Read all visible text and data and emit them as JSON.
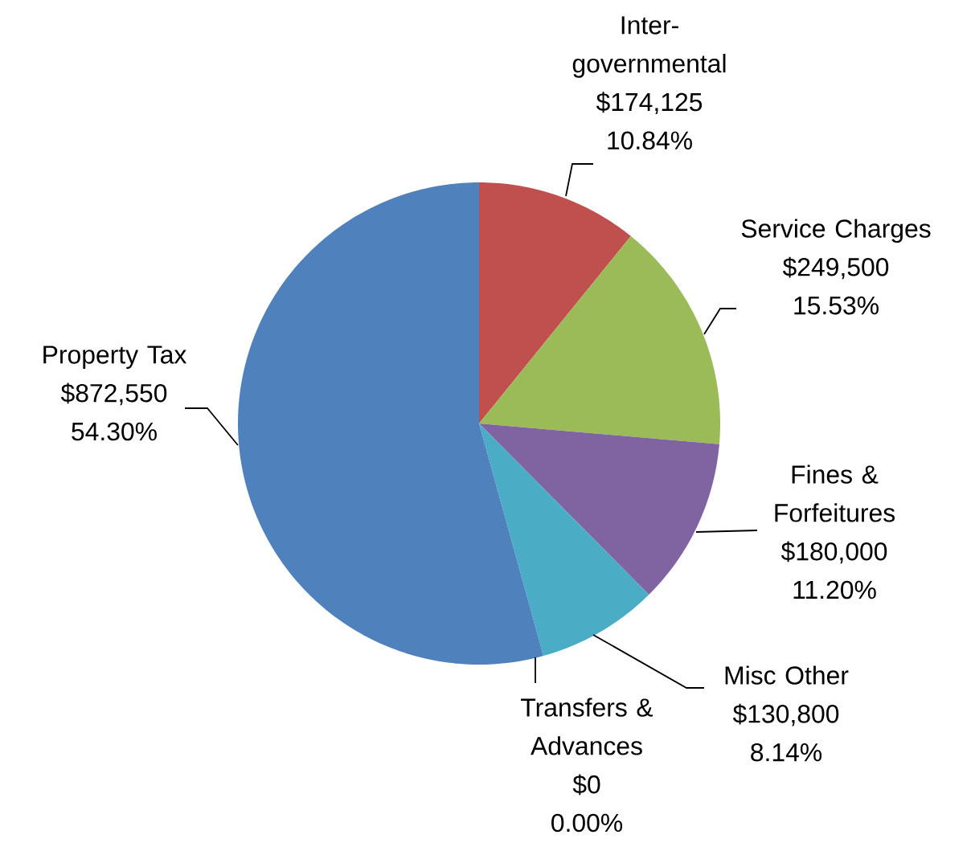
{
  "chart_data": {
    "type": "pie",
    "categories": [
      "Inter-governmental",
      "Service Charges",
      "Fines & Forfeitures",
      "Misc Other",
      "Transfers & Advances",
      "Property Tax"
    ],
    "values": [
      174125,
      249500,
      180000,
      130800,
      0,
      872550
    ],
    "value_labels": [
      "$174,125 10.84%",
      "$249,500 15.53%",
      "$180,000 11.20%",
      "$130,800 8.14%",
      "$0 0.00%",
      "$872,550 54.30%"
    ],
    "colors": [
      "#c0504d",
      "#9bbb59",
      "#8064a2",
      "#4bacc6",
      "#f79646",
      "#4f81bd"
    ]
  }
}
